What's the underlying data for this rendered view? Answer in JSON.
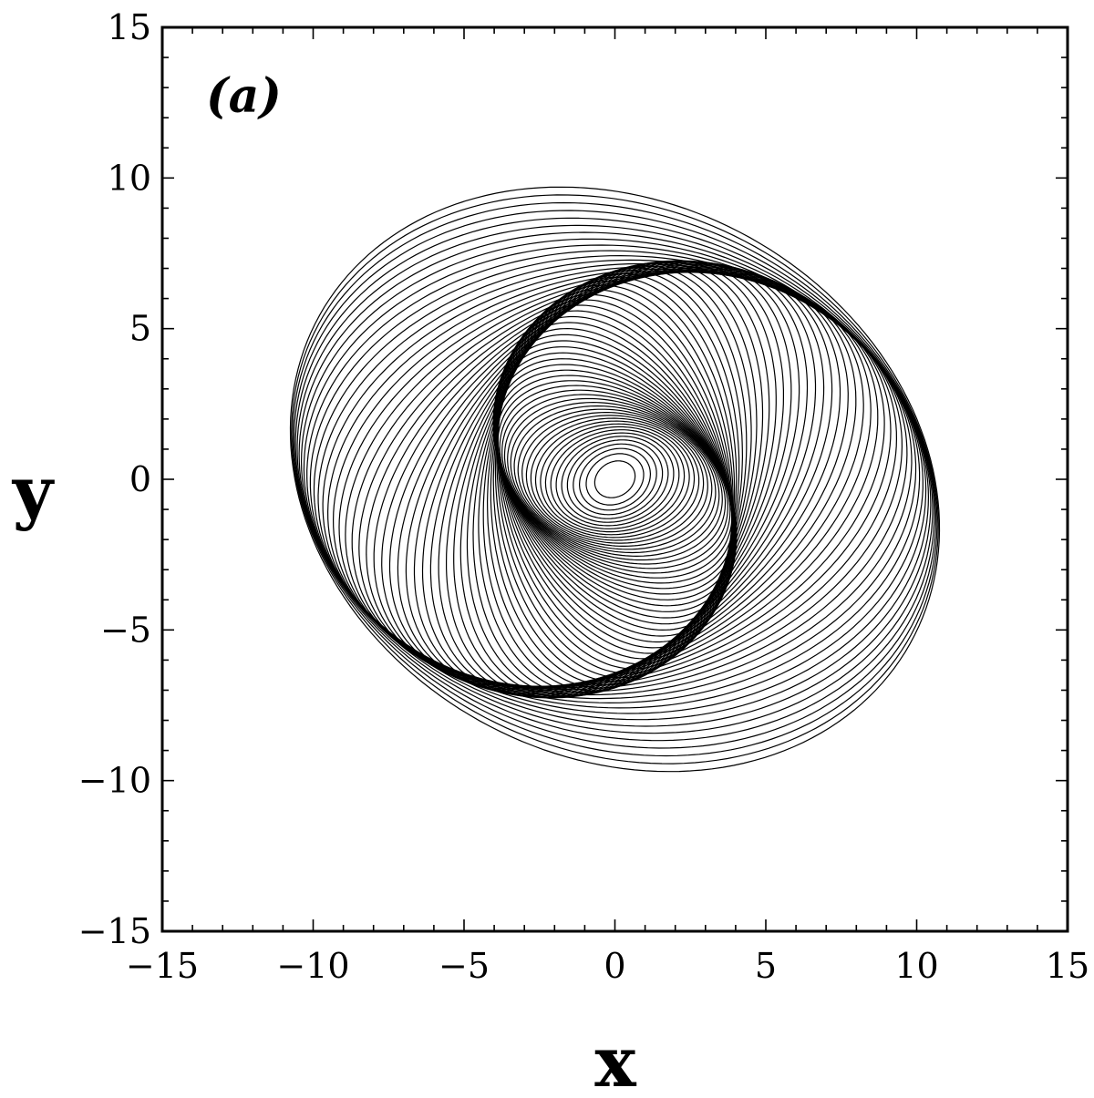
{
  "chart_data": {
    "type": "line",
    "title": "",
    "panel_label": "(a)",
    "xlabel": "x",
    "ylabel": "y",
    "xlim": [
      -15,
      15
    ],
    "ylim": [
      -15,
      15
    ],
    "x_ticks": [
      -15,
      -10,
      -5,
      0,
      5,
      10,
      15
    ],
    "y_ticks": [
      -15,
      -10,
      -5,
      0,
      5,
      10,
      15
    ],
    "x_tick_labels": [
      "−15",
      "−10",
      "−5",
      "0",
      "5",
      "10",
      "15"
    ],
    "y_tick_labels": [
      "−15",
      "−10",
      "−5",
      "0",
      "5",
      "10",
      "15"
    ],
    "grid": false,
    "legend": "none",
    "series": [
      {
        "style": "parametric-spiral-trajectory",
        "color": "#000000",
        "inner_radius": 0.7,
        "outer_extent": 11.2,
        "center": [
          0,
          0
        ]
      }
    ]
  }
}
